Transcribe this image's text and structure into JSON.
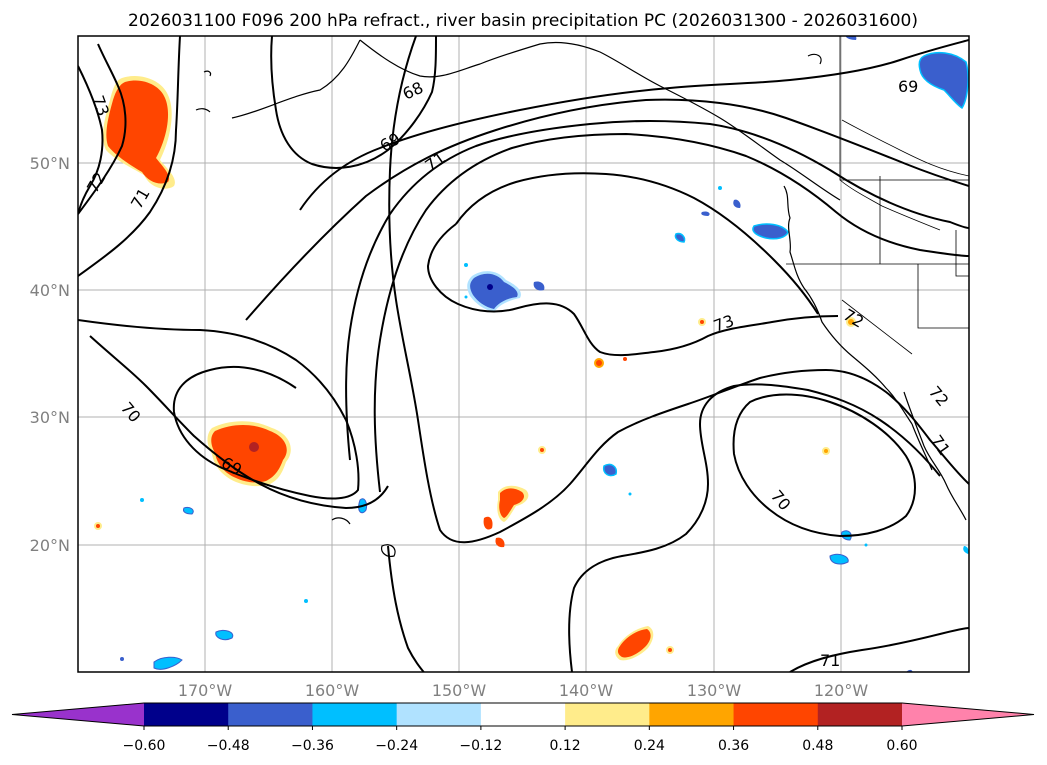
{
  "title": "2026031100 F096 200 hPa refract., river basin precipitation PC (2026031300 - 2026031600)",
  "axes": {
    "lat_labels": [
      "50°N",
      "40°N",
      "30°N",
      "20°N"
    ],
    "lon_labels": [
      "170°W",
      "160°W",
      "150°W",
      "140°W",
      "130°W",
      "120°W"
    ]
  },
  "colorbar": {
    "ticks": [
      "−0.60",
      "−0.48",
      "−0.36",
      "−0.24",
      "−0.12",
      "0.12",
      "0.24",
      "0.36",
      "0.48",
      "0.60"
    ],
    "colors": [
      "#9932cc",
      "#00008b",
      "#3a5fcd",
      "#00bfff",
      "#b0e2ff",
      "#ffffff",
      "#ffec8b",
      "#ffa500",
      "#ff4500",
      "#b22222",
      "#ff82ab"
    ]
  },
  "contour_labels": [
    "73",
    "72",
    "71",
    "68",
    "69",
    "71",
    "69",
    "73",
    "72",
    "72",
    "71",
    "70",
    "69",
    "70",
    "71"
  ]
}
